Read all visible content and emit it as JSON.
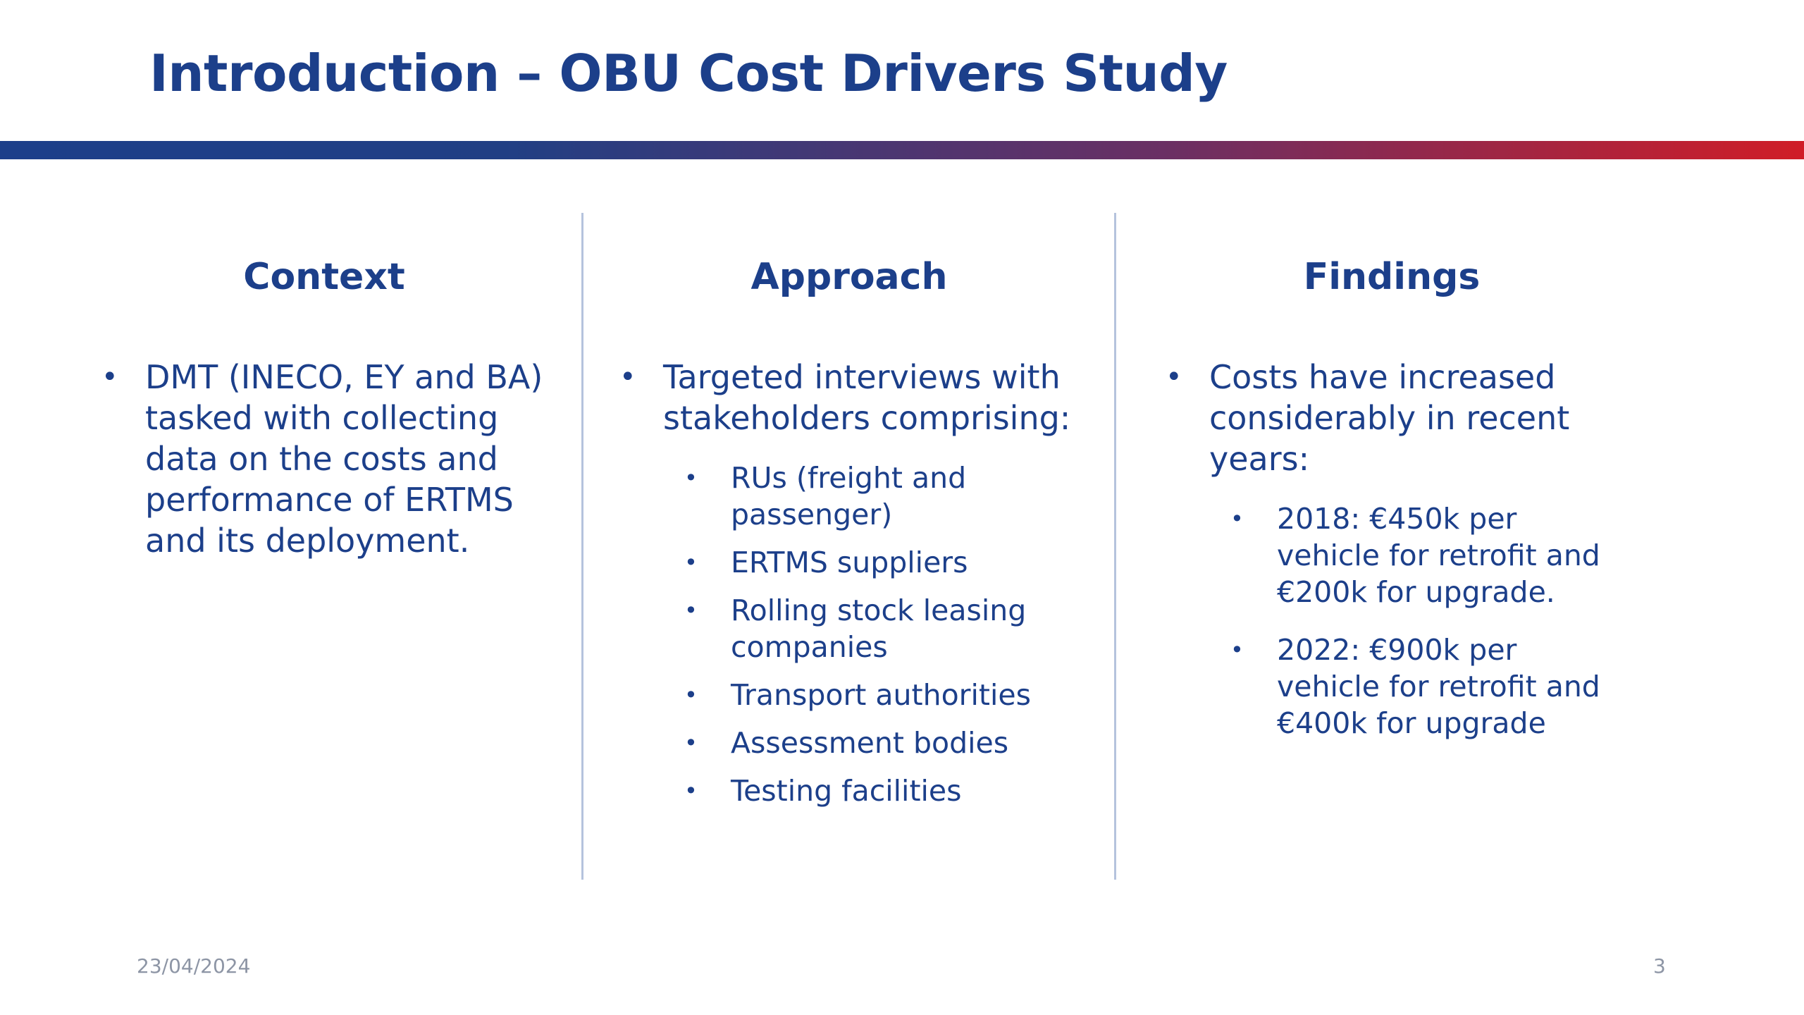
{
  "slide": {
    "title": "Introduction – OBU Cost Drivers Study",
    "date": "23/04/2024",
    "page_number": "3"
  },
  "colors": {
    "primary": "#1c3f8a",
    "banner_start": "#1c3f8a",
    "banner_end": "#d01d27",
    "divider": "#b5c3dd",
    "footer_text": "#8d95a5"
  },
  "bullet_glyph": "•",
  "columns": [
    {
      "heading": "Context",
      "bullets": [
        {
          "text": "DMT (INECO, EY and BA) tasked with collecting data on the costs and performance of ERTMS and its deployment.",
          "sub": []
        }
      ]
    },
    {
      "heading": "Approach",
      "bullets": [
        {
          "text": "Targeted interviews with stakeholders comprising:",
          "sub": [
            "RUs (freight and passenger)",
            "ERTMS suppliers",
            "Rolling stock leasing companies",
            "Transport authorities",
            "Assessment bodies",
            "Testing facilities"
          ]
        }
      ]
    },
    {
      "heading": "Findings",
      "bullets": [
        {
          "text": "Costs have increased considerably in recent years:",
          "sub": [
            "2018: €450k per vehicle for retrofit and €200k for upgrade.",
            "2022: €900k per vehicle for retrofit and €400k for upgrade"
          ]
        }
      ]
    }
  ]
}
